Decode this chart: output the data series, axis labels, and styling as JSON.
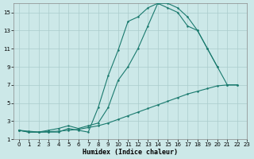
{
  "xlabel": "Humidex (Indice chaleur)",
  "bg_color": "#cce8e8",
  "grid_color": "#aacccc",
  "line_color": "#1a7a6e",
  "c1x": [
    0,
    1,
    2,
    3,
    4,
    5,
    6,
    7,
    8,
    9,
    10,
    11,
    12,
    13,
    14,
    15,
    16,
    17,
    18,
    19,
    20,
    21,
    22
  ],
  "c1y": [
    2.0,
    1.8,
    1.8,
    1.8,
    1.8,
    2.2,
    2.0,
    1.8,
    4.5,
    8.0,
    10.8,
    14.0,
    14.5,
    15.5,
    16.0,
    15.5,
    15.0,
    13.5,
    13.0,
    11.0,
    9.0,
    7.0,
    7.0
  ],
  "c2x": [
    0,
    1,
    2,
    3,
    4,
    5,
    6,
    7,
    8,
    9,
    10,
    11,
    12,
    13,
    14,
    15,
    16,
    17,
    18,
    19,
    20
  ],
  "c2y": [
    2.0,
    1.8,
    1.8,
    2.0,
    2.2,
    2.5,
    2.2,
    2.5,
    2.8,
    4.5,
    7.5,
    9.0,
    11.0,
    13.5,
    16.0,
    16.0,
    15.5,
    14.5,
    13.0,
    11.0,
    9.0
  ],
  "c3x": [
    0,
    1,
    2,
    3,
    4,
    5,
    6,
    7,
    8,
    9,
    10,
    11,
    12,
    13,
    14,
    15,
    16,
    17,
    18,
    19,
    20,
    21,
    22
  ],
  "c3y": [
    2.0,
    1.9,
    1.8,
    1.85,
    1.9,
    2.0,
    2.1,
    2.3,
    2.5,
    2.8,
    3.2,
    3.6,
    4.0,
    4.4,
    4.8,
    5.2,
    5.6,
    6.0,
    6.3,
    6.6,
    6.9,
    7.0,
    7.0
  ],
  "xlim": [
    -0.5,
    23
  ],
  "ylim": [
    1,
    16
  ],
  "xticks": [
    0,
    1,
    2,
    3,
    4,
    5,
    6,
    7,
    8,
    9,
    10,
    11,
    12,
    13,
    14,
    15,
    16,
    17,
    18,
    19,
    20,
    21,
    22,
    23
  ],
  "yticks": [
    1,
    3,
    5,
    7,
    9,
    11,
    13,
    15
  ],
  "tick_fontsize": 5,
  "xlabel_fontsize": 6
}
